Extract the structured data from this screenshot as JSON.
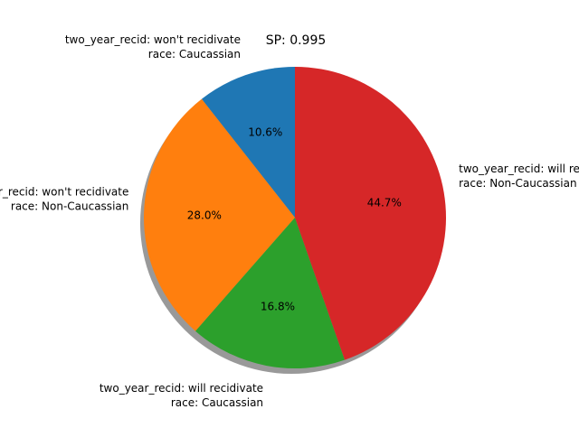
{
  "chart_data": {
    "type": "pie",
    "title": "SP: 0.995",
    "slices": [
      {
        "label_lines": [
          "two_year_recid: won't recidivate",
          "race: Caucassian"
        ],
        "value": 10.6,
        "pct_label": "10.6%",
        "color": "#1f77b4"
      },
      {
        "label_lines": [
          "two_year_recid: won't recidivate",
          "race: Non-Caucassian"
        ],
        "value": 28.0,
        "pct_label": "28.0%",
        "color": "#ff7f0e"
      },
      {
        "label_lines": [
          "two_year_recid: will recidivate",
          "race: Caucassian"
        ],
        "value": 16.8,
        "pct_label": "16.8%",
        "color": "#2ca02c"
      },
      {
        "label_lines": [
          "two_year_recid: will recidivate",
          "race: Non-Caucassian"
        ],
        "value": 44.7,
        "pct_label": "44.7%",
        "color": "#d62728"
      }
    ],
    "start_angle_deg": 90,
    "direction": "counterclockwise",
    "shadow": true
  }
}
